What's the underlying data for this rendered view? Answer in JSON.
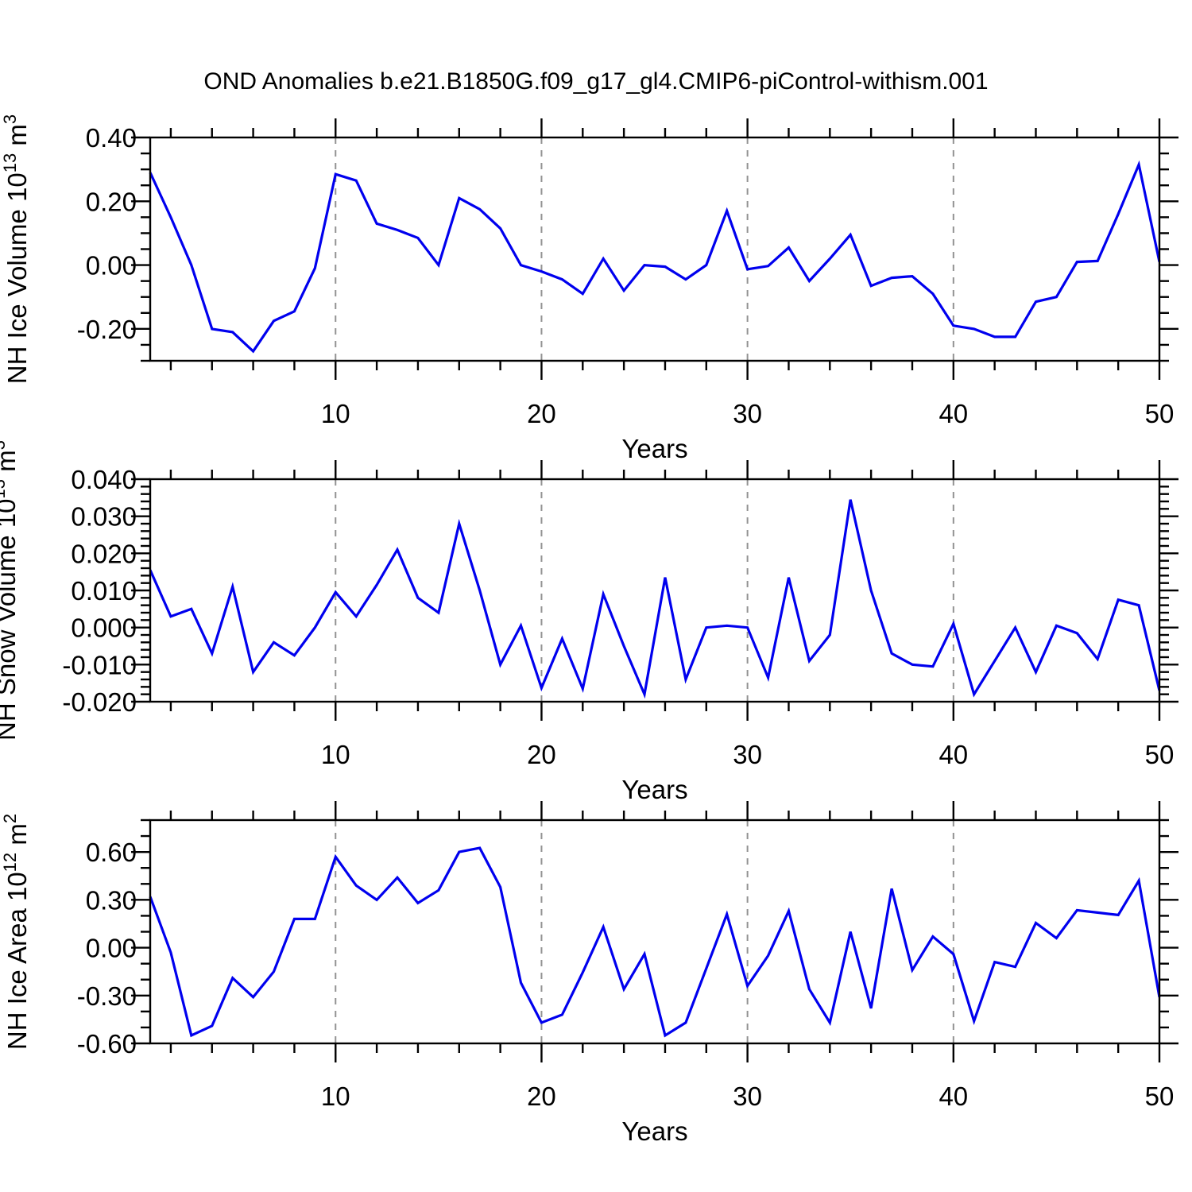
{
  "title": "OND Anomalies b.e21.B1850G.f09_g17_gl4.CMIP6-piControl-withism.001",
  "colors": {
    "line": "#0000EE",
    "grid": "#929292",
    "axis": "#000000",
    "background": "#FFFFFF"
  },
  "chart_data": [
    {
      "type": "line",
      "title": "",
      "xlabel": "Years",
      "ylabel": "NH Ice Volume 10¹³ m³",
      "ylabel_parts": [
        {
          "t": "NH Ice Volume 10"
        },
        {
          "t": "13",
          "sup": true
        },
        {
          "t": " m"
        },
        {
          "t": "3",
          "sup": true
        }
      ],
      "x_range": [
        1,
        50
      ],
      "x_step": 1,
      "ylim": [
        -0.3,
        0.4
      ],
      "y_minor_step": 0.05,
      "x_minor_step": 2,
      "grid": "dashed-vertical",
      "legend": "none",
      "vlines": [
        10,
        20,
        30,
        40
      ],
      "xticks": [
        {
          "v": 10,
          "label": "10"
        },
        {
          "v": 20,
          "label": "20"
        },
        {
          "v": 30,
          "label": "30"
        },
        {
          "v": 40,
          "label": "40"
        },
        {
          "v": 50,
          "label": "50"
        }
      ],
      "yticks": [
        {
          "v": 0.4,
          "label": "0.40"
        },
        {
          "v": 0.2,
          "label": "0.20"
        },
        {
          "v": 0.0,
          "label": "0.00"
        },
        {
          "v": -0.2,
          "label": "-0.20"
        }
      ],
      "values": [
        0.29,
        0.15,
        0.0,
        -0.2,
        -0.21,
        -0.27,
        -0.175,
        -0.145,
        -0.01,
        0.285,
        0.265,
        0.13,
        0.11,
        0.085,
        0.0,
        0.21,
        0.175,
        0.115,
        0.0,
        -0.02,
        -0.045,
        -0.09,
        0.02,
        -0.08,
        0.0,
        -0.005,
        -0.045,
        0.0,
        0.17,
        -0.013,
        -0.003,
        0.055,
        -0.05,
        0.02,
        0.095,
        -0.065,
        -0.04,
        -0.035,
        -0.09,
        -0.19,
        -0.2,
        -0.225,
        -0.225,
        -0.115,
        -0.1,
        0.01,
        0.013,
        0.16,
        0.315,
        0.01
      ]
    },
    {
      "type": "line",
      "title": "",
      "xlabel": "Years",
      "ylabel": "NH Snow Volume 10¹³ m³",
      "ylabel_parts": [
        {
          "t": "NH Snow Volume 10"
        },
        {
          "t": "13",
          "sup": true
        },
        {
          "t": " m"
        },
        {
          "t": "3",
          "sup": true
        }
      ],
      "x_range": [
        1,
        50
      ],
      "x_step": 1,
      "ylim": [
        -0.02,
        0.04
      ],
      "y_minor_step": 0.002,
      "x_minor_step": 2,
      "grid": "dashed-vertical",
      "legend": "none",
      "vlines": [
        10,
        20,
        30,
        40
      ],
      "xticks": [
        {
          "v": 10,
          "label": "10"
        },
        {
          "v": 20,
          "label": "20"
        },
        {
          "v": 30,
          "label": "30"
        },
        {
          "v": 40,
          "label": "40"
        },
        {
          "v": 50,
          "label": "50"
        }
      ],
      "yticks": [
        {
          "v": 0.04,
          "label": "0.040"
        },
        {
          "v": 0.03,
          "label": "0.030"
        },
        {
          "v": 0.02,
          "label": "0.020"
        },
        {
          "v": 0.01,
          "label": "0.010"
        },
        {
          "v": 0.0,
          "label": "0.000"
        },
        {
          "v": -0.01,
          "label": "-0.010"
        },
        {
          "v": -0.02,
          "label": "-0.020"
        }
      ],
      "values": [
        0.0155,
        0.003,
        0.005,
        -0.007,
        0.011,
        -0.012,
        -0.004,
        -0.0075,
        0.0,
        0.0095,
        0.003,
        0.0115,
        0.021,
        0.008,
        0.004,
        0.028,
        0.01,
        -0.01,
        0.0005,
        -0.0163,
        -0.003,
        -0.0165,
        0.009,
        -0.005,
        -0.018,
        0.0135,
        -0.014,
        0.0,
        0.0005,
        0.0,
        -0.0135,
        0.0135,
        -0.009,
        -0.002,
        0.0345,
        0.01,
        -0.007,
        -0.01,
        -0.0105,
        0.001,
        -0.018,
        -0.009,
        0.0,
        -0.012,
        0.0005,
        -0.0015,
        -0.0085,
        0.0075,
        0.006,
        -0.017
      ]
    },
    {
      "type": "line",
      "title": "",
      "xlabel": "Years",
      "ylabel": "NH Ice Area 10¹² m²",
      "ylabel_parts": [
        {
          "t": "NH Ice Area 10"
        },
        {
          "t": "12",
          "sup": true
        },
        {
          "t": " m"
        },
        {
          "t": "2",
          "sup": true
        }
      ],
      "x_range": [
        1,
        50
      ],
      "x_step": 1,
      "ylim": [
        -0.6,
        0.8
      ],
      "y_minor_step": 0.1,
      "x_minor_step": 2,
      "grid": "dashed-vertical",
      "legend": "none",
      "vlines": [
        10,
        20,
        30,
        40
      ],
      "xticks": [
        {
          "v": 10,
          "label": "10"
        },
        {
          "v": 20,
          "label": "20"
        },
        {
          "v": 30,
          "label": "30"
        },
        {
          "v": 40,
          "label": "40"
        },
        {
          "v": 50,
          "label": "50"
        }
      ],
      "yticks": [
        {
          "v": 0.6,
          "label": "0.60"
        },
        {
          "v": 0.3,
          "label": "0.30"
        },
        {
          "v": 0.0,
          "label": "0.00"
        },
        {
          "v": -0.3,
          "label": "-0.30"
        },
        {
          "v": -0.6,
          "label": "-0.60"
        }
      ],
      "values": [
        0.32,
        -0.03,
        -0.55,
        -0.49,
        -0.19,
        -0.31,
        -0.15,
        0.18,
        0.18,
        0.57,
        0.39,
        0.3,
        0.44,
        0.28,
        0.36,
        0.6,
        0.625,
        0.38,
        -0.22,
        -0.47,
        -0.42,
        -0.155,
        0.13,
        -0.26,
        -0.04,
        -0.55,
        -0.47,
        -0.13,
        0.21,
        -0.24,
        -0.05,
        0.23,
        -0.26,
        -0.47,
        0.1,
        -0.38,
        0.37,
        -0.14,
        0.07,
        -0.04,
        -0.46,
        -0.09,
        -0.12,
        0.155,
        0.06,
        0.235,
        0.22,
        0.205,
        0.42,
        -0.31
      ]
    }
  ]
}
